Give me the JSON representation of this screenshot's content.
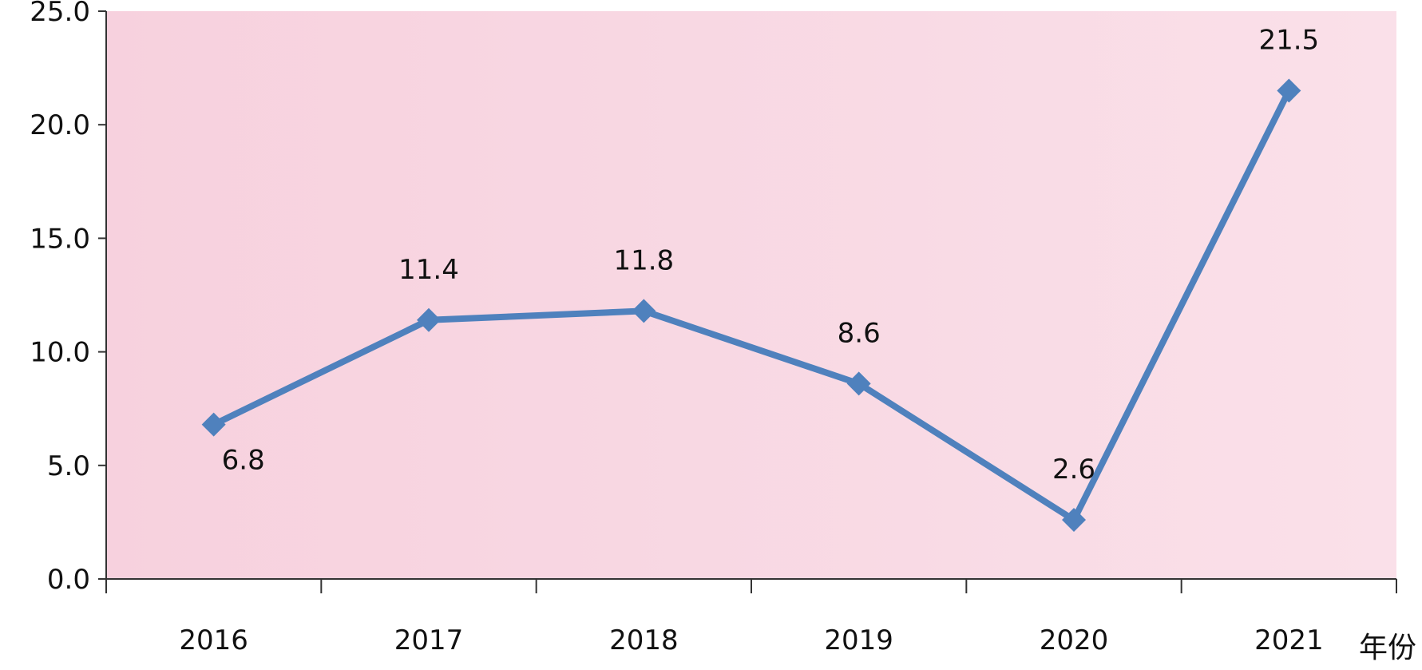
{
  "chart_data": {
    "type": "line",
    "categories": [
      "2016",
      "2017",
      "2018",
      "2019",
      "2020",
      "2021"
    ],
    "series": [
      {
        "values": [
          6.8,
          11.4,
          11.8,
          8.6,
          2.6,
          21.5
        ]
      }
    ],
    "data_labels": [
      "6.8",
      "11.4",
      "11.8",
      "8.6",
      "2.6",
      "21.5"
    ],
    "y_ticks": [
      "0.0",
      "5.0",
      "10.0",
      "15.0",
      "20.0",
      "25.0"
    ],
    "ylim": [
      0,
      25
    ],
    "xlabel": "年份",
    "ylabel": "",
    "title": "",
    "grid": false,
    "legend": "none",
    "marker": "diamond",
    "colors": {
      "line": "#4f81bd",
      "plot_bg_left": "#f7d1de",
      "plot_bg_right": "#fae0e9",
      "axis": "#333333"
    }
  }
}
